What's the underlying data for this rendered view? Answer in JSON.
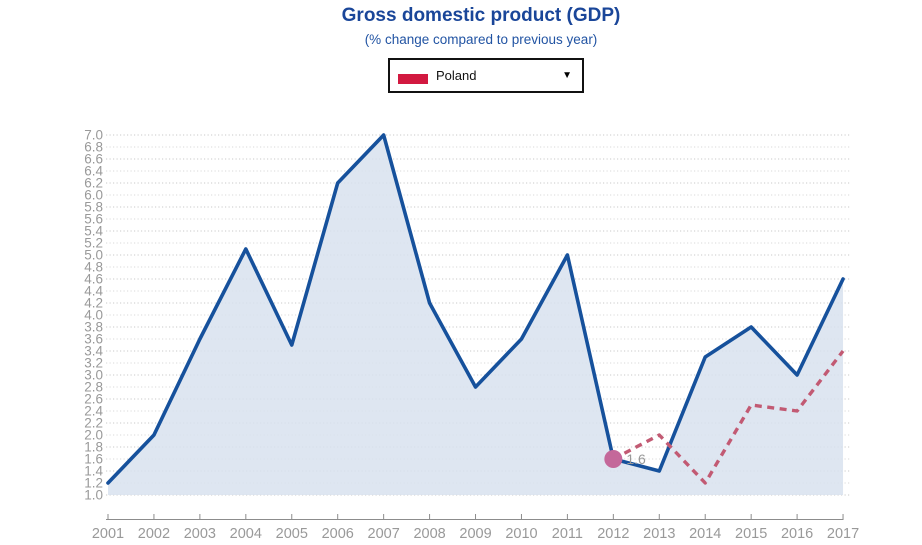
{
  "header": {
    "title": "Gross domestic product (GDP)",
    "subtitle": "(% change compared to previous year)"
  },
  "country_selector": {
    "selected": "Poland",
    "swatch_color": "#d21940",
    "arrow": "▼"
  },
  "chart_data": {
    "type": "line",
    "title": "Gross domestic product (GDP)",
    "subtitle": "(% change compared to previous year)",
    "x": [
      2001,
      2002,
      2003,
      2004,
      2005,
      2006,
      2007,
      2008,
      2009,
      2010,
      2011,
      2012,
      2013,
      2014,
      2015,
      2016,
      2017
    ],
    "series": [
      {
        "name": "Poland",
        "style": "solid",
        "color": "#16519c",
        "area_fill": "#d8e2ee",
        "values": [
          1.2,
          2.0,
          3.6,
          5.1,
          3.5,
          6.2,
          7.0,
          4.2,
          2.8,
          3.6,
          5.0,
          1.6,
          1.4,
          3.3,
          3.8,
          3.0,
          4.6
        ]
      },
      {
        "name": "comparison-dashed",
        "style": "dashed",
        "color": "#c25a73",
        "x": [
          2012,
          2013,
          2014,
          2015,
          2016,
          2017
        ],
        "values": [
          1.6,
          2.0,
          1.2,
          2.5,
          2.4,
          3.4
        ]
      }
    ],
    "highlight": {
      "year": 2012,
      "value": 1.6,
      "label": "1.6",
      "dot_color": "#c4689a",
      "label_color": "#999999"
    },
    "ylim": [
      1.0,
      7.0
    ],
    "ytick_step": 0.2,
    "grid": "dotted",
    "grid_color": "#c9c9c9",
    "grid_color_alt": "#dadada",
    "axis_color": "#8c8c8c",
    "tick_label_color": "#999999",
    "legend_position": "none"
  }
}
